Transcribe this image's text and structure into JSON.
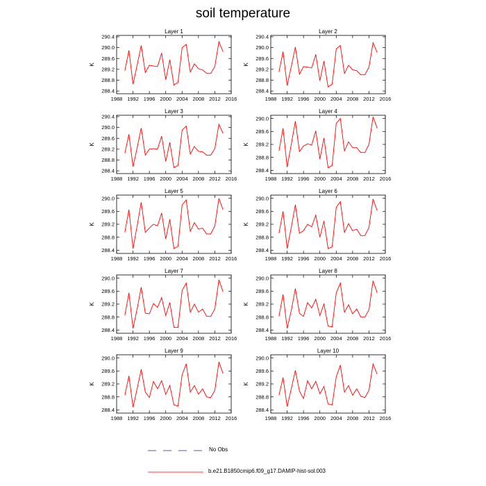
{
  "figure": {
    "title": "soil temperature"
  },
  "legend": {
    "obs_label": "No Obs",
    "model_label": "b.e21.B1850cmip6.f09_g17.DAMIP-hist-sol.003",
    "obs_color": "#5555aa",
    "model_color": "#ff0000"
  },
  "chart_data": [
    {
      "type": "line",
      "title": "Layer 1",
      "ylabel": "K",
      "xlim": [
        1988,
        2016
      ],
      "ylim": [
        288.3,
        290.45
      ],
      "xticks": [
        1988,
        1992,
        1996,
        2000,
        2004,
        2008,
        2012,
        2016
      ],
      "yticks": [
        288.4,
        288.8,
        289.2,
        289.6,
        290.0,
        290.4
      ],
      "x": [
        1990,
        1991,
        1992,
        1993,
        1994,
        1995,
        1996,
        1997,
        1998,
        1999,
        2000,
        2001,
        2002,
        2003,
        2004,
        2005,
        2006,
        2007,
        2008,
        2009,
        2010,
        2011,
        2012,
        2013,
        2014
      ],
      "series": [
        {
          "name": "b.e21.B1850cmip6.f09_g17.DAMIP-hist-sol.003",
          "color": "#ff0000",
          "values": [
            289.15,
            289.9,
            288.65,
            289.35,
            290.08,
            289.08,
            289.35,
            289.32,
            289.3,
            289.8,
            288.82,
            289.55,
            288.62,
            288.72,
            290.0,
            290.12,
            289.1,
            289.4,
            289.22,
            289.18,
            289.05,
            289.05,
            289.3,
            290.22,
            289.85
          ]
        }
      ]
    },
    {
      "type": "line",
      "title": "Layer 2",
      "ylabel": "K",
      "xlim": [
        1988,
        2016
      ],
      "ylim": [
        288.3,
        290.45
      ],
      "xticks": [
        1988,
        1992,
        1996,
        2000,
        2004,
        2008,
        2012,
        2016
      ],
      "yticks": [
        288.4,
        288.8,
        289.2,
        289.6,
        290.0,
        290.4
      ],
      "x": [
        1990,
        1991,
        1992,
        1993,
        1994,
        1995,
        1996,
        1997,
        1998,
        1999,
        2000,
        2001,
        2002,
        2003,
        2004,
        2005,
        2006,
        2007,
        2008,
        2009,
        2010,
        2011,
        2012,
        2013,
        2014
      ],
      "series": [
        {
          "name": "b.e21.B1850cmip6.f09_g17.DAMIP-hist-sol.003",
          "color": "#ff0000",
          "values": [
            289.1,
            289.85,
            288.6,
            289.3,
            290.02,
            289.02,
            289.3,
            289.28,
            289.25,
            289.75,
            288.78,
            289.5,
            288.55,
            288.65,
            289.95,
            290.08,
            289.05,
            289.35,
            289.18,
            289.15,
            289.0,
            289.0,
            289.28,
            290.18,
            289.82
          ]
        }
      ]
    },
    {
      "type": "line",
      "title": "Layer 3",
      "ylabel": "K",
      "xlim": [
        1988,
        2016
      ],
      "ylim": [
        288.3,
        290.45
      ],
      "xticks": [
        1988,
        1992,
        1996,
        2000,
        2004,
        2008,
        2012,
        2016
      ],
      "yticks": [
        288.4,
        288.8,
        289.2,
        289.6,
        290.0,
        290.4
      ],
      "x": [
        1990,
        1991,
        1992,
        1993,
        1994,
        1995,
        1996,
        1997,
        1998,
        1999,
        2000,
        2001,
        2002,
        2003,
        2004,
        2005,
        2006,
        2007,
        2008,
        2009,
        2010,
        2011,
        2012,
        2013,
        2014
      ],
      "series": [
        {
          "name": "b.e21.B1850cmip6.f09_g17.DAMIP-hist-sol.003",
          "color": "#ff0000",
          "values": [
            289.05,
            289.75,
            288.55,
            289.25,
            289.98,
            288.98,
            289.2,
            289.22,
            289.2,
            289.68,
            288.75,
            289.45,
            288.52,
            288.6,
            289.9,
            290.05,
            289.02,
            289.3,
            289.12,
            289.1,
            288.98,
            288.98,
            289.22,
            290.12,
            289.78
          ]
        }
      ]
    },
    {
      "type": "line",
      "title": "Layer 4",
      "ylabel": "K",
      "xlim": [
        1988,
        2016
      ],
      "ylim": [
        288.3,
        290.1
      ],
      "xticks": [
        1988,
        1992,
        1996,
        2000,
        2004,
        2008,
        2012,
        2016
      ],
      "yticks": [
        288.4,
        288.8,
        289.2,
        289.6,
        290.0
      ],
      "x": [
        1990,
        1991,
        1992,
        1993,
        1994,
        1995,
        1996,
        1997,
        1998,
        1999,
        2000,
        2001,
        2002,
        2003,
        2004,
        2005,
        2006,
        2007,
        2008,
        2009,
        2010,
        2011,
        2012,
        2013,
        2014
      ],
      "series": [
        {
          "name": "b.e21.B1850cmip6.f09_g17.DAMIP-hist-sol.003",
          "color": "#ff0000",
          "values": [
            289.0,
            289.7,
            288.5,
            289.2,
            289.92,
            288.98,
            289.15,
            289.22,
            289.18,
            289.62,
            288.75,
            289.4,
            288.48,
            288.55,
            289.85,
            290.0,
            289.0,
            289.28,
            289.1,
            289.1,
            288.95,
            288.95,
            289.2,
            290.05,
            289.7
          ]
        }
      ]
    },
    {
      "type": "line",
      "title": "Layer 5",
      "ylabel": "K",
      "xlim": [
        1988,
        2016
      ],
      "ylim": [
        288.3,
        290.1
      ],
      "xticks": [
        1988,
        1992,
        1996,
        2000,
        2004,
        2008,
        2012,
        2016
      ],
      "yticks": [
        288.4,
        288.8,
        289.2,
        289.6,
        290.0
      ],
      "x": [
        1990,
        1991,
        1992,
        1993,
        1994,
        1995,
        1996,
        1997,
        1998,
        1999,
        2000,
        2001,
        2002,
        2003,
        2004,
        2005,
        2006,
        2007,
        2008,
        2009,
        2010,
        2011,
        2012,
        2013,
        2014
      ],
      "series": [
        {
          "name": "b.e21.B1850cmip6.f09_g17.DAMIP-hist-sol.003",
          "color": "#ff0000",
          "values": [
            288.95,
            289.65,
            288.45,
            289.15,
            289.88,
            288.95,
            289.08,
            289.2,
            289.15,
            289.55,
            288.75,
            289.35,
            288.45,
            288.52,
            289.8,
            289.95,
            288.98,
            289.25,
            289.05,
            289.08,
            288.9,
            288.9,
            289.15,
            290.0,
            289.65
          ]
        }
      ]
    },
    {
      "type": "line",
      "title": "Layer 6",
      "ylabel": "K",
      "xlim": [
        1988,
        2016
      ],
      "ylim": [
        288.3,
        290.1
      ],
      "xticks": [
        1988,
        1992,
        1996,
        2000,
        2004,
        2008,
        2012,
        2016
      ],
      "yticks": [
        288.4,
        288.8,
        289.2,
        289.6,
        290.0
      ],
      "x": [
        1990,
        1991,
        1992,
        1993,
        1994,
        1995,
        1996,
        1997,
        1998,
        1999,
        2000,
        2001,
        2002,
        2003,
        2004,
        2005,
        2006,
        2007,
        2008,
        2009,
        2010,
        2011,
        2012,
        2013,
        2014
      ],
      "series": [
        {
          "name": "b.e21.B1850cmip6.f09_g17.DAMIP-hist-sol.003",
          "color": "#ff0000",
          "values": [
            288.92,
            289.6,
            288.45,
            289.1,
            289.8,
            288.92,
            289.0,
            289.2,
            289.12,
            289.48,
            288.8,
            289.3,
            288.45,
            288.5,
            289.72,
            289.9,
            288.95,
            289.22,
            289.0,
            289.05,
            288.85,
            288.85,
            289.1,
            289.98,
            289.62
          ]
        }
      ]
    },
    {
      "type": "line",
      "title": "Layer 7",
      "ylabel": "K",
      "xlim": [
        1988,
        2016
      ],
      "ylim": [
        288.3,
        290.1
      ],
      "xticks": [
        1988,
        1992,
        1996,
        2000,
        2004,
        2008,
        2012,
        2016
      ],
      "yticks": [
        288.4,
        288.8,
        289.2,
        289.6,
        290.0
      ],
      "x": [
        1990,
        1991,
        1992,
        1993,
        1994,
        1995,
        1996,
        1997,
        1998,
        1999,
        2000,
        2001,
        2002,
        2003,
        2004,
        2005,
        2006,
        2007,
        2008,
        2009,
        2010,
        2011,
        2012,
        2013,
        2014
      ],
      "series": [
        {
          "name": "b.e21.B1850cmip6.f09_g17.DAMIP-hist-sol.003",
          "color": "#ff0000",
          "values": [
            288.85,
            289.55,
            288.45,
            289.05,
            289.72,
            288.92,
            288.9,
            289.22,
            289.1,
            289.4,
            288.85,
            289.25,
            288.48,
            288.48,
            289.62,
            289.85,
            288.95,
            289.2,
            288.95,
            289.05,
            288.82,
            288.82,
            289.05,
            289.95,
            289.58
          ]
        }
      ]
    },
    {
      "type": "line",
      "title": "Layer 8",
      "ylabel": "K",
      "xlim": [
        1988,
        2016
      ],
      "ylim": [
        288.3,
        290.1
      ],
      "xticks": [
        1988,
        1992,
        1996,
        2000,
        2004,
        2008,
        2012,
        2016
      ],
      "yticks": [
        288.4,
        288.8,
        289.2,
        289.6,
        290.0
      ],
      "x": [
        1990,
        1991,
        1992,
        1993,
        1994,
        1995,
        1996,
        1997,
        1998,
        1999,
        2000,
        2001,
        2002,
        2003,
        2004,
        2005,
        2006,
        2007,
        2008,
        2009,
        2010,
        2011,
        2012,
        2013,
        2014
      ],
      "series": [
        {
          "name": "b.e21.B1850cmip6.f09_g17.DAMIP-hist-sol.003",
          "color": "#ff0000",
          "values": [
            288.82,
            289.5,
            288.45,
            289.0,
            289.68,
            288.92,
            288.82,
            289.25,
            289.08,
            289.35,
            288.85,
            289.2,
            288.52,
            288.5,
            289.55,
            289.85,
            288.95,
            289.18,
            288.9,
            289.05,
            288.8,
            288.8,
            289.02,
            289.92,
            289.55
          ]
        }
      ]
    },
    {
      "type": "line",
      "title": "Layer 9",
      "ylabel": "K",
      "xlim": [
        1988,
        2016
      ],
      "ylim": [
        288.3,
        290.1
      ],
      "xticks": [
        1988,
        1992,
        1996,
        2000,
        2004,
        2008,
        2012,
        2016
      ],
      "yticks": [
        288.4,
        288.8,
        289.2,
        289.6,
        290.0
      ],
      "x": [
        1990,
        1991,
        1992,
        1993,
        1994,
        1995,
        1996,
        1997,
        1998,
        1999,
        2000,
        2001,
        2002,
        2003,
        2004,
        2005,
        2006,
        2007,
        2008,
        2009,
        2010,
        2011,
        2012,
        2013,
        2014
      ],
      "series": [
        {
          "name": "b.e21.B1850cmip6.f09_g17.DAMIP-hist-sol.003",
          "color": "#ff0000",
          "values": [
            288.85,
            289.45,
            288.48,
            289.05,
            289.65,
            288.95,
            288.78,
            289.28,
            289.05,
            289.3,
            288.88,
            289.15,
            288.55,
            288.52,
            289.48,
            289.82,
            288.95,
            289.15,
            288.88,
            289.05,
            288.8,
            288.78,
            289.0,
            289.88,
            289.52
          ]
        }
      ]
    },
    {
      "type": "line",
      "title": "Layer 10",
      "ylabel": "K",
      "xlim": [
        1988,
        2016
      ],
      "ylim": [
        288.3,
        290.1
      ],
      "xticks": [
        1988,
        1992,
        1996,
        2000,
        2004,
        2008,
        2012,
        2016
      ],
      "yticks": [
        288.4,
        288.8,
        289.2,
        289.6,
        290.0
      ],
      "x": [
        1990,
        1991,
        1992,
        1993,
        1994,
        1995,
        1996,
        1997,
        1998,
        1999,
        2000,
        2001,
        2002,
        2003,
        2004,
        2005,
        2006,
        2007,
        2008,
        2009,
        2010,
        2011,
        2012,
        2013,
        2014
      ],
      "series": [
        {
          "name": "b.e21.B1850cmip6.f09_g17.DAMIP-hist-sol.003",
          "color": "#ff0000",
          "values": [
            288.85,
            289.4,
            288.5,
            289.05,
            289.62,
            288.98,
            288.75,
            289.3,
            289.05,
            289.28,
            288.9,
            289.12,
            288.58,
            288.55,
            289.42,
            289.78,
            288.95,
            289.15,
            288.85,
            289.05,
            288.82,
            288.78,
            289.0,
            289.82,
            289.5
          ]
        }
      ]
    }
  ]
}
